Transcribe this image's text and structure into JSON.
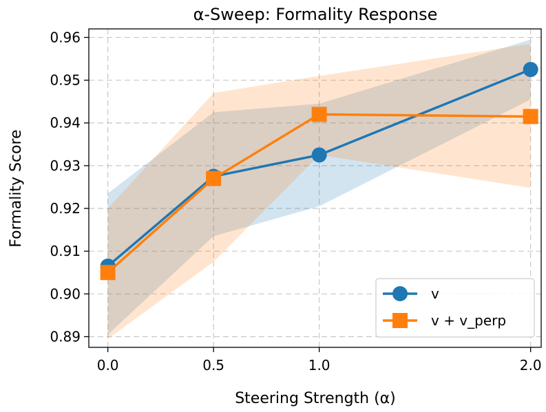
{
  "chart_data": {
    "type": "line",
    "title": "α-Sweep: Formality Response",
    "xlabel": "Steering Strength (α)",
    "ylabel": "Formality Score",
    "x": [
      0.0,
      0.5,
      1.0,
      2.0
    ],
    "x_tick_values": [
      0.0,
      0.5,
      1.0,
      2.0
    ],
    "x_tick_labels": [
      "0.0",
      "0.5",
      "1.0",
      "2.0"
    ],
    "xlim": [
      -0.09,
      2.05
    ],
    "y_tick_values": [
      0.89,
      0.9,
      0.91,
      0.92,
      0.93,
      0.94,
      0.95,
      0.96
    ],
    "y_tick_labels": [
      "0.89",
      "0.90",
      "0.91",
      "0.92",
      "0.93",
      "0.94",
      "0.95",
      "0.96"
    ],
    "ylim": [
      0.8875,
      0.962
    ],
    "grid": true,
    "legend_position": "lower-right",
    "series": [
      {
        "name": "v",
        "color": "#1f77b4",
        "marker": "circle",
        "values": [
          0.9065,
          0.9275,
          0.9325,
          0.9525
        ],
        "band_lower": [
          0.8905,
          0.9135,
          0.9205,
          0.9455
        ],
        "band_upper": [
          0.9235,
          0.9425,
          0.9445,
          0.9595
        ]
      },
      {
        "name": "v + v_perp",
        "color": "#ff7f0e",
        "marker": "square",
        "values": [
          0.905,
          0.927,
          0.942,
          0.9415
        ],
        "band_lower": [
          0.8895,
          0.9075,
          0.9325,
          0.9248
        ],
        "band_upper": [
          0.92,
          0.947,
          0.951,
          0.9585
        ]
      }
    ]
  }
}
